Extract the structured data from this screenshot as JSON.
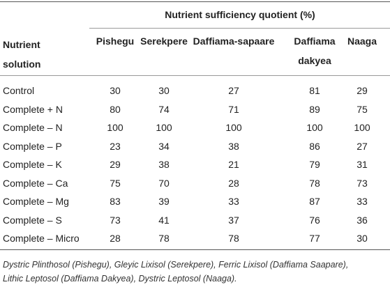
{
  "table": {
    "group_header": "Nutrient sufficiency quotient (%)",
    "row_header": "Nutrient solution",
    "columns": [
      [
        "Pishegu"
      ],
      [
        "Serekpere"
      ],
      [
        "Daffiama-sapaare"
      ],
      [
        "Daffiama",
        "dakyea"
      ],
      [
        "Naaga"
      ]
    ],
    "rows": [
      [
        "Control",
        30,
        30,
        27,
        81,
        29
      ],
      [
        "Complete + N",
        80,
        74,
        71,
        89,
        75
      ],
      [
        "Complete – N",
        100,
        100,
        100,
        100,
        100
      ],
      [
        "Complete – P",
        23,
        34,
        38,
        86,
        27
      ],
      [
        "Complete – K",
        29,
        38,
        21,
        79,
        31
      ],
      [
        "Complete – Ca",
        75,
        70,
        28,
        78,
        73
      ],
      [
        "Complete – Mg",
        83,
        39,
        33,
        87,
        33
      ],
      [
        "Complete – S",
        73,
        41,
        37,
        76,
        36
      ],
      [
        "Complete – Micro",
        28,
        78,
        78,
        77,
        30
      ]
    ]
  },
  "footnote": [
    "Dystric Plinthosol (Pishegu), Gleyic Lixisol (Serekpere), Ferric Lixisol (Daffiama Saapare),",
    "Lithic Leptosol (Daffiama Dakyea), Dystric Leptosol (Naaga)."
  ]
}
